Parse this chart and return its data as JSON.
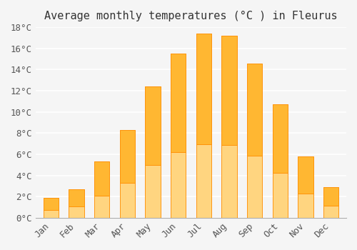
{
  "months": [
    "Jan",
    "Feb",
    "Mar",
    "Apr",
    "May",
    "Jun",
    "Jul",
    "Aug",
    "Sep",
    "Oct",
    "Nov",
    "Dec"
  ],
  "temperatures": [
    1.9,
    2.7,
    5.3,
    8.3,
    12.4,
    15.5,
    17.4,
    17.2,
    14.6,
    10.7,
    5.8,
    2.9
  ],
  "bar_color": "#FFA500",
  "bar_edge_color": "#FF8C00",
  "title": "Average monthly temperatures (°C ) in Fleurus",
  "ylabel": "",
  "ylim": [
    0,
    18
  ],
  "ytick_step": 2,
  "background_color": "#f5f5f5",
  "grid_color": "#ffffff",
  "title_fontsize": 11,
  "tick_fontsize": 9,
  "bar_gradient_top": "#FFB732",
  "bar_gradient_bottom": "#FFD580"
}
